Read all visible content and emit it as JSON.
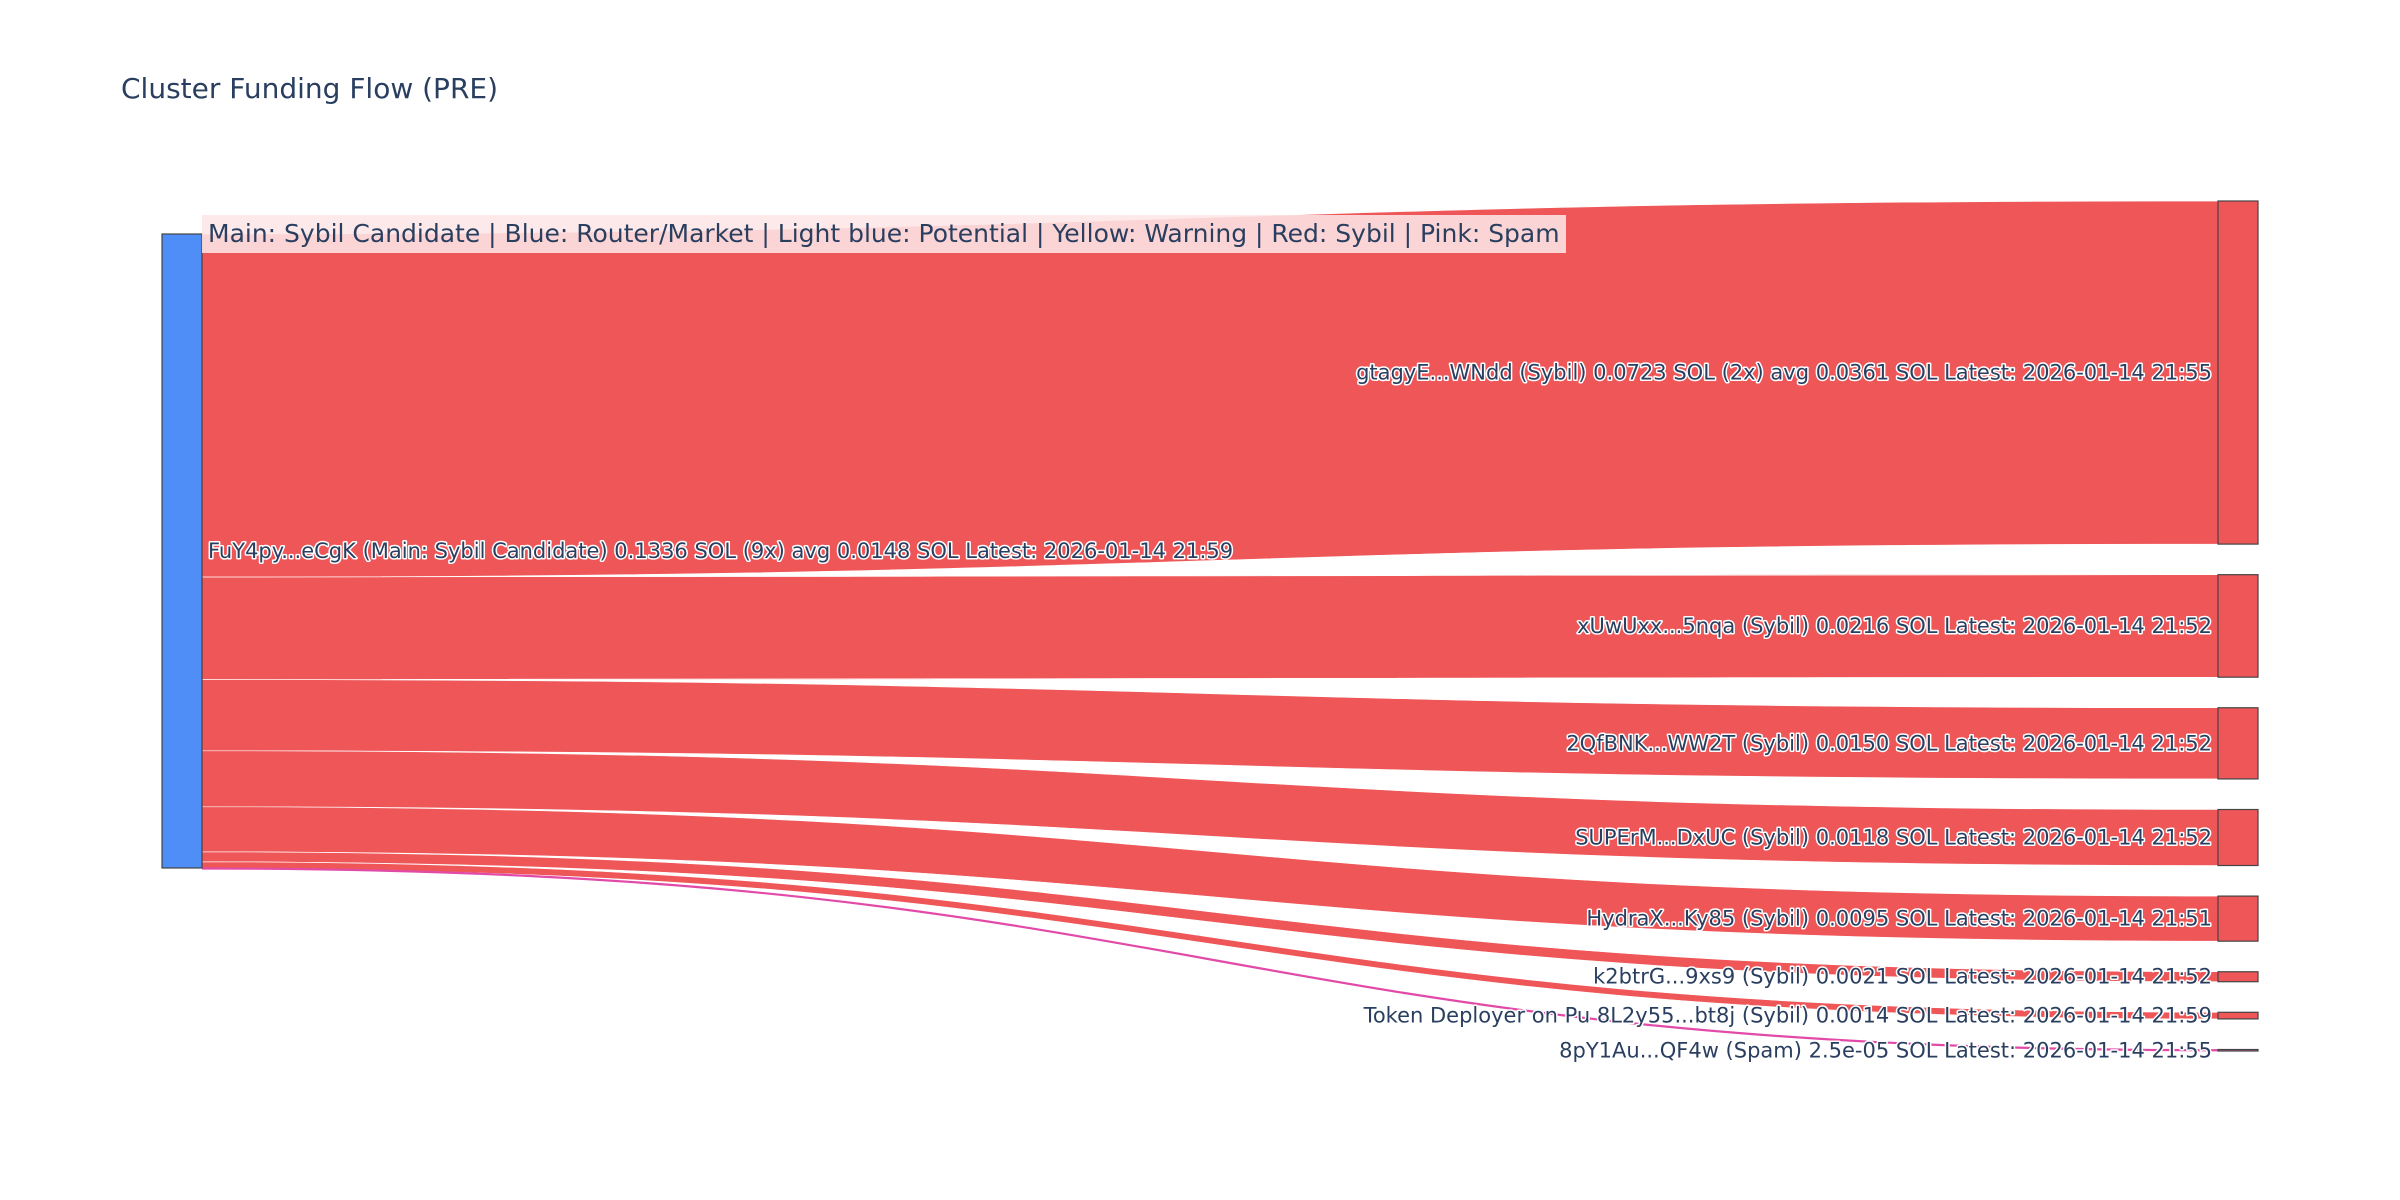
{
  "title": "Cluster Funding Flow (PRE)",
  "legend_text": "Main: Sybil Candidate  |  Blue: Router/Market | Light blue: Potential | Yellow: Warning | Red: Sybil | Pink: Spam",
  "colors": {
    "main": "#4f8ef7",
    "sybil": "#ef5658",
    "spam": "#e24aa8",
    "text": "#2a3f5f"
  },
  "chart_data": {
    "type": "sankey",
    "title": "Cluster Funding Flow (PRE)",
    "source": {
      "label": "FuY4py...eCgK (Main: Sybil Candidate) 0.1336 SOL (9x) avg 0.0148 SOL Latest: 2026-01-14 21:59",
      "category": "main",
      "total": 0.1336
    },
    "targets": [
      {
        "label": "gtagyE...WNdd (Sybil) 0.0723 SOL (2x) avg 0.0361 SOL Latest: 2026-01-14 21:55",
        "value": 0.0723,
        "category": "sybil"
      },
      {
        "label": "xUwUxx...5nqa (Sybil) 0.0216 SOL Latest: 2026-01-14 21:52",
        "value": 0.0216,
        "category": "sybil"
      },
      {
        "label": "2QfBNK...WW2T (Sybil) 0.0150 SOL Latest: 2026-01-14 21:52",
        "value": 0.015,
        "category": "sybil"
      },
      {
        "label": "SUPErM...DxUC (Sybil) 0.0118 SOL Latest: 2026-01-14 21:52",
        "value": 0.0118,
        "category": "sybil"
      },
      {
        "label": "HydraX...Ky85 (Sybil) 0.0095 SOL Latest: 2026-01-14 21:51",
        "value": 0.0095,
        "category": "sybil"
      },
      {
        "label": "k2btrG...9xs9 (Sybil) 0.0021 SOL Latest: 2026-01-14 21:52",
        "value": 0.0021,
        "category": "sybil"
      },
      {
        "label": "Token Deployer on Pu 8L2y55...bt8j (Sybil) 0.0014 SOL Latest: 2026-01-14 21:59",
        "value": 0.0014,
        "category": "sybil"
      },
      {
        "label": "8pY1Au...QF4w (Spam) 2.5e-05 SOL Latest: 2026-01-14 21:55",
        "value": 2.5e-05,
        "category": "spam"
      }
    ]
  }
}
